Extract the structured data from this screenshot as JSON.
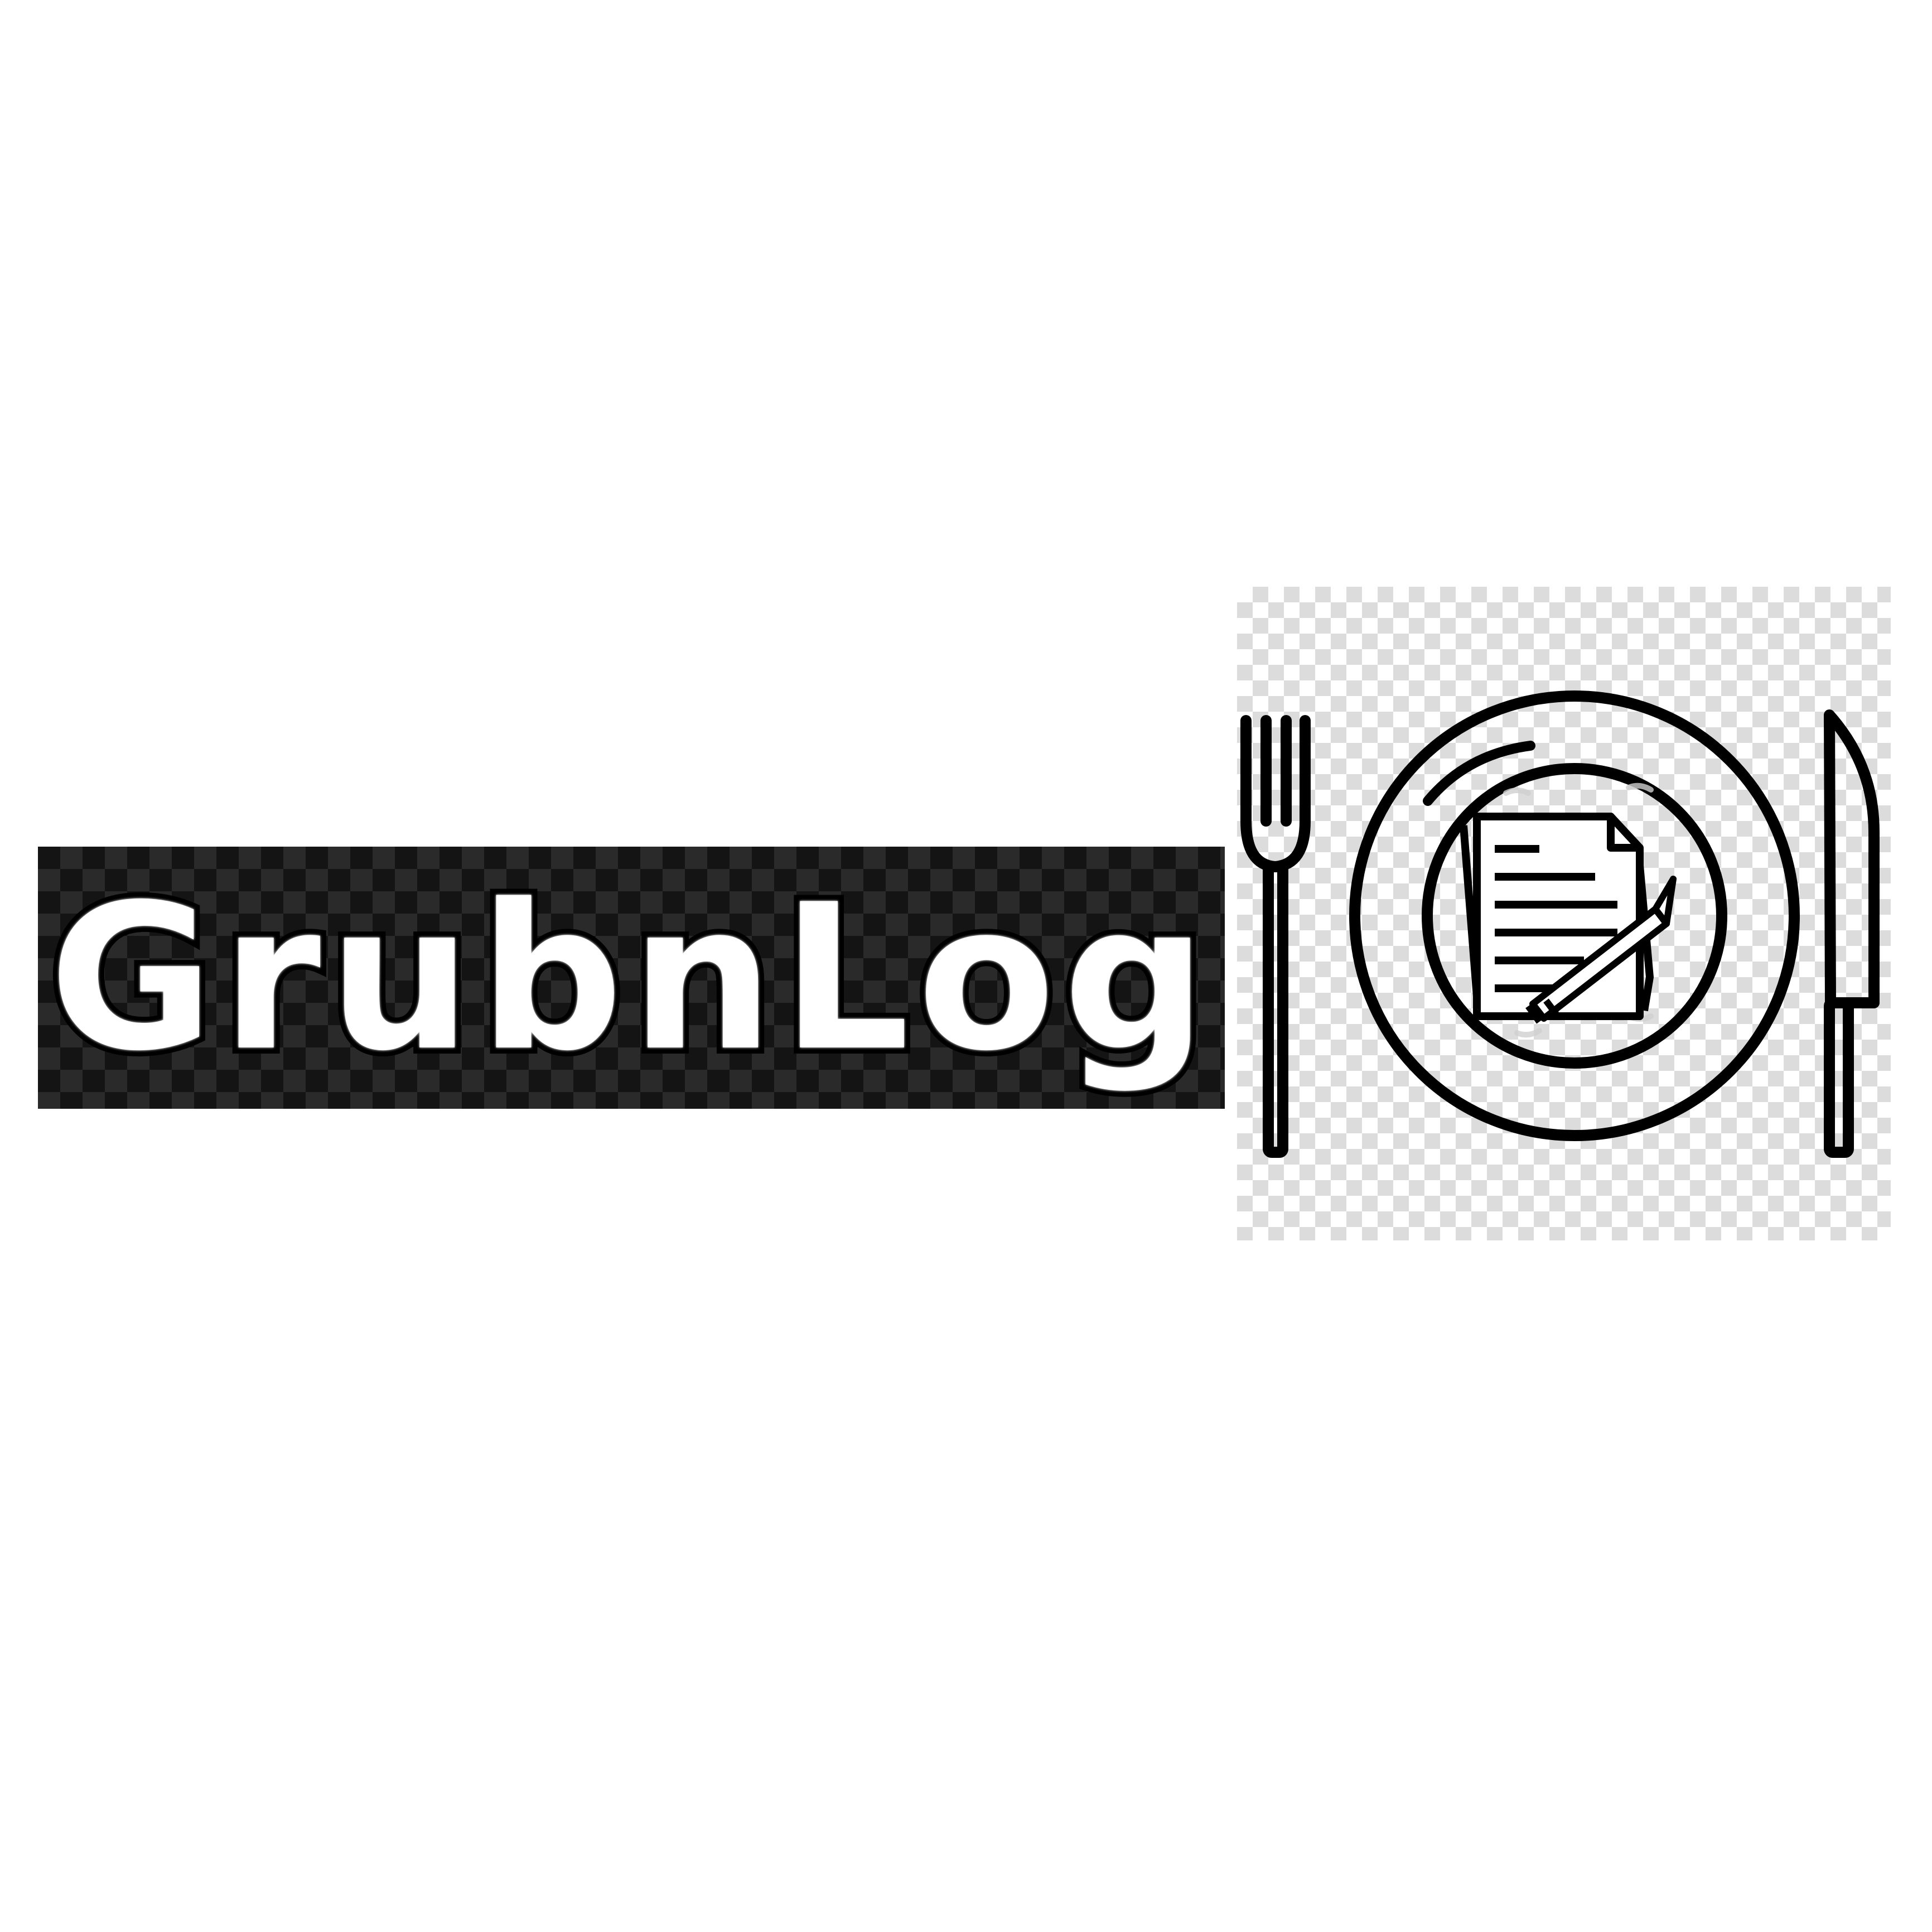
{
  "logo": {
    "wordmark": "GrubnLog",
    "colors": {
      "background": "#ffffff",
      "plate_dark": "#141414",
      "text_fill": "#ffffff",
      "outline": "#000000"
    },
    "icons": [
      "fork-icon",
      "plate-icon",
      "notepad-icon",
      "pencil-icon",
      "knife-icon"
    ]
  }
}
